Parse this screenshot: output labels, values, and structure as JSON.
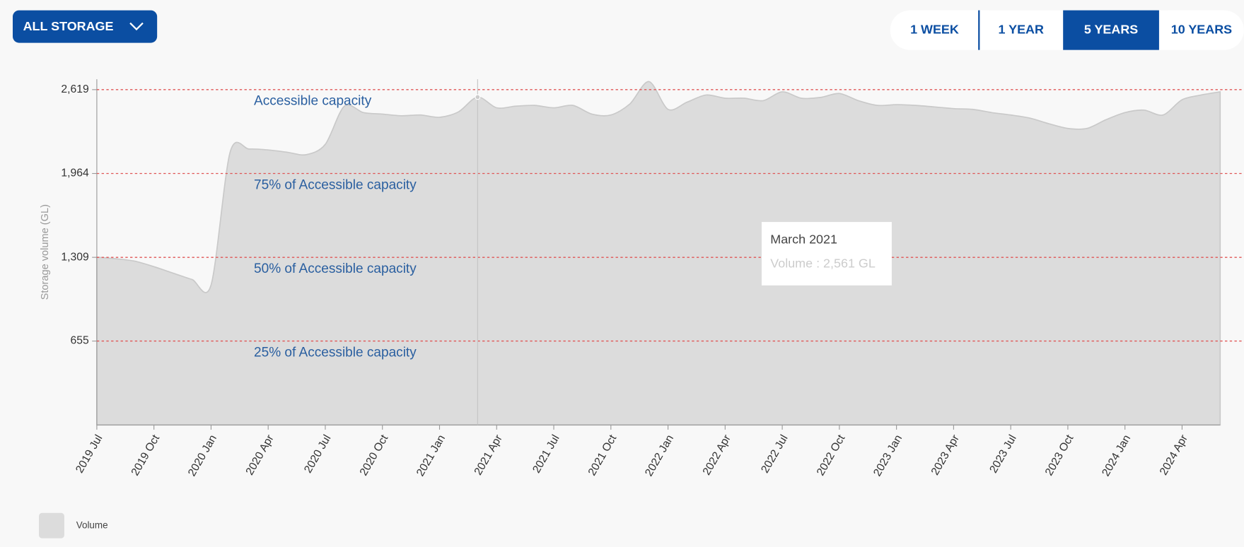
{
  "controls": {
    "storage_button": "ALL STORAGE",
    "ranges": [
      "1 WEEK",
      "1 YEAR",
      "5 YEARS",
      "10 YEARS"
    ],
    "active_range": "5 YEARS"
  },
  "chart_data": {
    "type": "area",
    "y_label": "Storage volume (GL)",
    "categories": [
      "2019 Jul",
      null,
      null,
      "2019 Oct",
      null,
      null,
      "2020 Jan",
      null,
      null,
      "2020 Apr",
      null,
      null,
      "2020 Jul",
      null,
      null,
      "2020 Oct",
      null,
      null,
      "2021 Jan",
      null,
      null,
      "2021 Apr",
      null,
      null,
      "2021 Jul",
      null,
      null,
      "2021 Oct",
      null,
      null,
      "2022 Jan",
      null,
      null,
      "2022 Apr",
      null,
      null,
      "2022 Jul",
      null,
      null,
      "2022 Oct",
      null,
      null,
      "2023 Jan",
      null,
      null,
      "2023 Apr",
      null,
      null,
      "2023 Jul",
      null,
      null,
      "2023 Oct",
      null,
      null,
      "2024 Jan",
      null,
      null,
      "2024 Apr",
      null,
      null
    ],
    "series": [
      {
        "name": "Volume",
        "color": "#dcdcdc",
        "values": [
          1310,
          1298,
          1279,
          1236,
          1186,
          1136,
          1093,
          2130,
          2155,
          2148,
          2130,
          2111,
          2192,
          2490,
          2440,
          2428,
          2415,
          2421,
          2403,
          2446,
          2561,
          2477,
          2490,
          2496,
          2477,
          2496,
          2428,
          2421,
          2508,
          2682,
          2465,
          2521,
          2577,
          2552,
          2552,
          2533,
          2602,
          2552,
          2558,
          2589,
          2533,
          2496,
          2502,
          2496,
          2484,
          2471,
          2465,
          2440,
          2421,
          2397,
          2353,
          2316,
          2316,
          2384,
          2440,
          2459,
          2421,
          2540,
          2577,
          2602
        ]
      }
    ],
    "ylim": [
      0,
      2700
    ],
    "yticks": [
      655,
      {
        "value": 1309,
        "label": "1,309"
      },
      {
        "value": 1964,
        "label": "1,964"
      },
      {
        "value": 2619,
        "label": "2,619"
      }
    ],
    "reference_lines": [
      {
        "value": 2619,
        "label": "Accessible capacity"
      },
      {
        "value": 1964,
        "label": "75% of Accessible capacity"
      },
      {
        "value": 1309,
        "label": "50% of Accessible capacity"
      },
      {
        "value": 655,
        "label": "25% of Accessible capacity"
      }
    ],
    "reference_color": "#e05555",
    "tooltip": {
      "title": "March 2021",
      "label": "Volume : 2,561 GL"
    },
    "legend": "bottom-left"
  }
}
